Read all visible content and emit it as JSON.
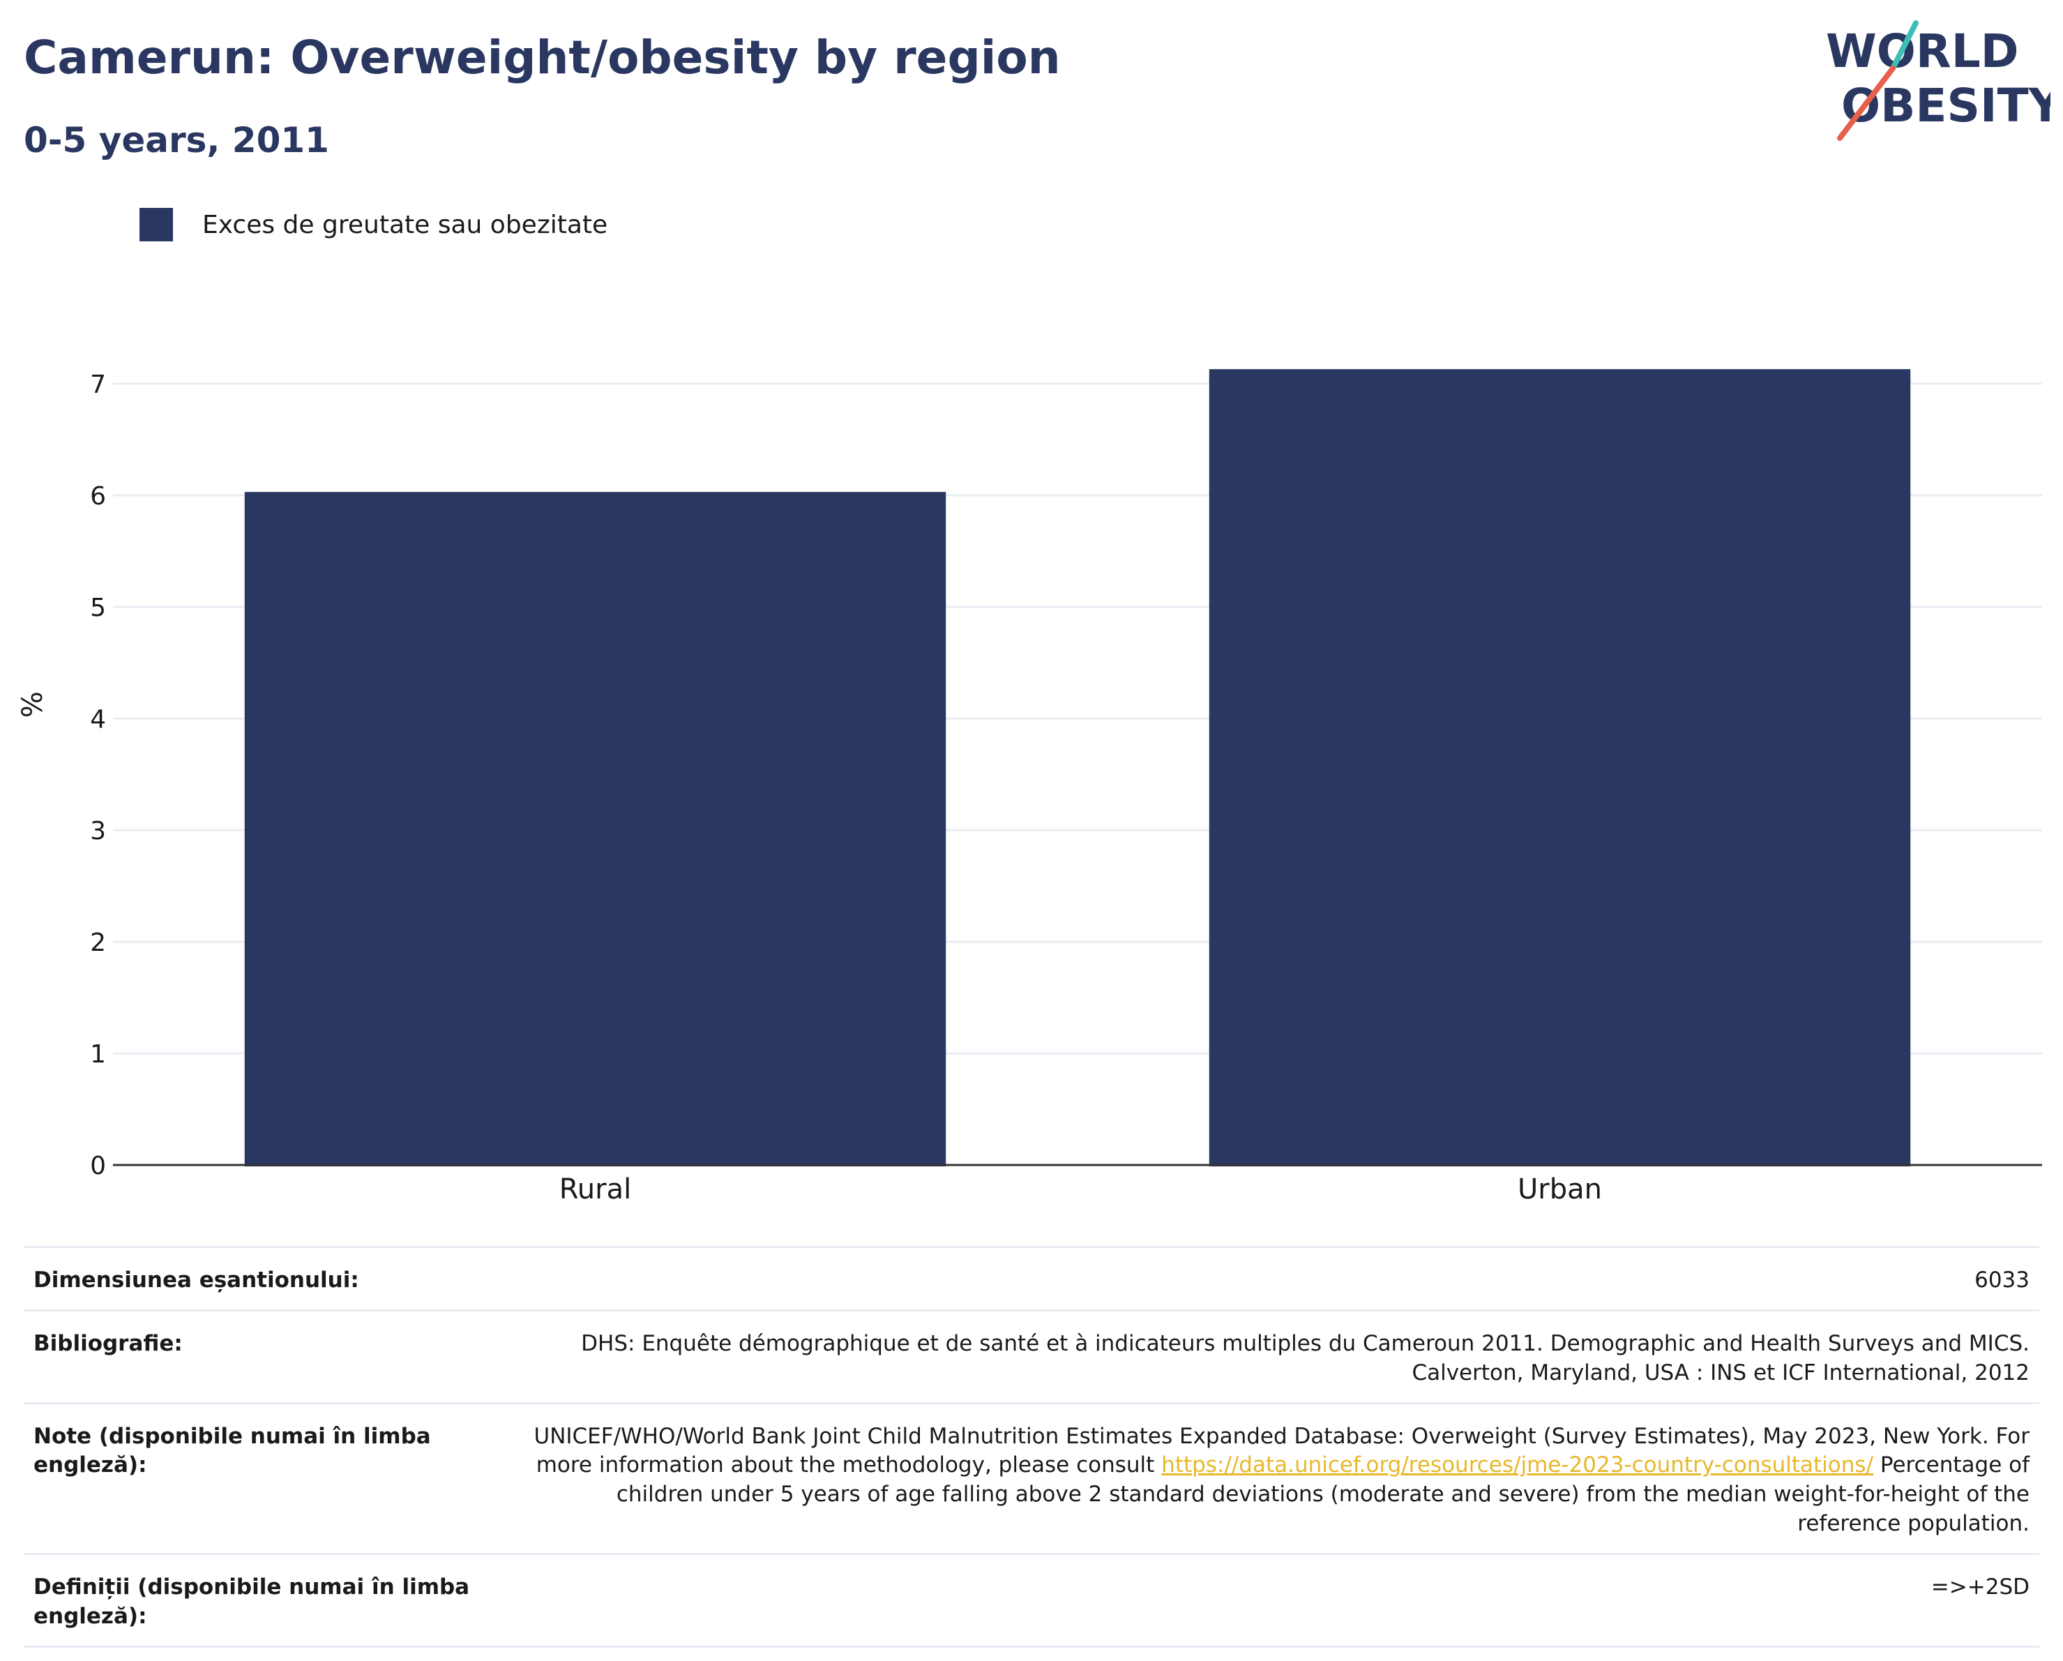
{
  "header": {
    "title": "Camerun: Overweight/obesity by region",
    "subtitle": "0-5 years, 2011"
  },
  "logo": {
    "line1": "WORLD",
    "line2": "OBESITY",
    "colors": {
      "text": "#2a3761",
      "slash_top": "#3dbdb6",
      "slash_bottom": "#e8604c"
    }
  },
  "legend": {
    "items": [
      {
        "label": "Exces de greutate sau obezitate",
        "color": "#2a3761"
      }
    ]
  },
  "chart_data": {
    "type": "bar",
    "categories": [
      "Rural",
      "Urban"
    ],
    "series": [
      {
        "name": "Exces de greutate sau obezitate",
        "values": [
          6.03,
          7.13
        ],
        "color": "#2a3761"
      }
    ],
    "ylabel": "%",
    "xlabel": "",
    "ylim": [
      0,
      7.5
    ],
    "yticks": [
      0,
      1,
      2,
      3,
      4,
      5,
      6,
      7
    ],
    "grid": true,
    "legend_position": "top-left"
  },
  "info_table": {
    "rows": [
      {
        "key": "Dimensiunea eșantionului:",
        "value": "6033"
      },
      {
        "key": "Bibliografie:",
        "value": "DHS: Enquête démographique et de santé et à indicateurs multiples du Cameroun 2011. Demographic and Health Surveys and MICS. Calverton, Maryland, USA : INS et ICF International, 2012"
      },
      {
        "key": "Note (disponibile numai în limba engleză):",
        "value_before": "UNICEF/WHO/World Bank Joint Child Malnutrition Estimates Expanded Database: Overweight (Survey Estimates), May 2023, New York. For more information about the methodology, please consult ",
        "link": "https://data.unicef.org/resources/jme-2023-country-consultations/",
        "value_after": " Percentage of children under 5 years of age falling above 2 standard deviations (moderate and severe) from the median weight-for-height of the reference population."
      },
      {
        "key": "Definiții (disponibile numai în limba engleză):",
        "value": "=>+2SD"
      }
    ],
    "link_color": "#e8b82a"
  }
}
